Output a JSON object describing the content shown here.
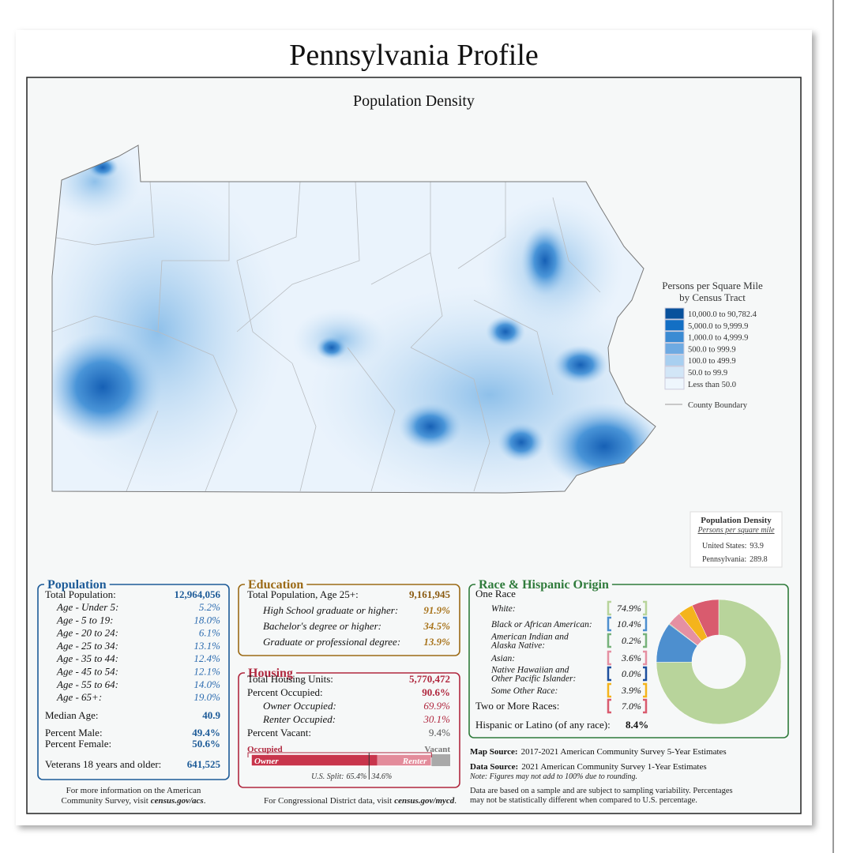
{
  "header": {
    "title": "Pennsylvania Profile"
  },
  "map": {
    "title": "Population Density",
    "legend": {
      "title": [
        "Persons per Square Mile",
        "by Census Tract"
      ],
      "items": [
        {
          "label": "10,000.0 to 90,782.4",
          "color": "#08519c"
        },
        {
          "label": "5,000.0 to 9,999.9",
          "color": "#136fc4"
        },
        {
          "label": "1,000.0 to 4,999.9",
          "color": "#3b8bd3"
        },
        {
          "label": "500.0 to 999.9",
          "color": "#6eaae2"
        },
        {
          "label": "100.0 to 499.9",
          "color": "#a8cff0"
        },
        {
          "label": "50.0 to 99.9",
          "color": "#d2e6f7"
        },
        {
          "label": "Less than 50.0",
          "color": "#eef6fd"
        }
      ],
      "boundary": "County Boundary"
    },
    "density_box": {
      "title": "Population Density",
      "subtitle": "Persons per square mile",
      "rows": [
        {
          "label": "United States:",
          "value": "93.9"
        },
        {
          "label": "Pennsylvania:",
          "value": "289.8"
        }
      ]
    }
  },
  "population": {
    "title": "Population",
    "total": {
      "label": "Total Population:",
      "value": "12,964,056"
    },
    "ages": [
      {
        "label": "Age - Under 5:",
        "value": "5.2%"
      },
      {
        "label": "Age - 5 to 19:",
        "value": "18.0%"
      },
      {
        "label": "Age - 20 to 24:",
        "value": "6.1%"
      },
      {
        "label": "Age - 25 to 34:",
        "value": "13.1%"
      },
      {
        "label": "Age - 35 to 44:",
        "value": "12.4%"
      },
      {
        "label": "Age - 45 to 54:",
        "value": "12.1%"
      },
      {
        "label": "Age - 55 to 64:",
        "value": "14.0%"
      },
      {
        "label": "Age - 65+:",
        "value": "19.0%"
      }
    ],
    "median": {
      "label": "Median Age:",
      "value": "40.9"
    },
    "sex": [
      {
        "label": "Percent Male:",
        "value": "49.4%"
      },
      {
        "label": "Percent Female:",
        "value": "50.6%"
      }
    ],
    "veterans": {
      "label": "Veterans 18 years and older:",
      "value": "641,525"
    },
    "footer": {
      "line1": "For more information on the American",
      "line2": "Community Survey, visit",
      "link": "census.gov/acs",
      "end": "."
    }
  },
  "education": {
    "title": "Education",
    "total": {
      "label": "Total Population, Age 25+:",
      "value": "9,161,945"
    },
    "items": [
      {
        "label": "High School  graduate or higher:",
        "value": "91.9%"
      },
      {
        "label": "Bachelor's degree or higher:",
        "value": "34.5%"
      },
      {
        "label": "Graduate or professional degree:",
        "value": "13.9%"
      }
    ]
  },
  "housing": {
    "title": "Housing",
    "total": {
      "label": "Total Housing Units:",
      "value": "5,770,472"
    },
    "occupied": {
      "label": "Percent Occupied:",
      "value": 90.6,
      "value_label": "90.6%"
    },
    "tenure": [
      {
        "label": "Owner Occupied:",
        "value": 69.9,
        "value_label": "69.9%"
      },
      {
        "label": "Renter Occupied:",
        "value": 30.1,
        "value_label": "30.1%"
      }
    ],
    "vacant": {
      "label": "Percent Vacant:",
      "value": 9.4,
      "value_label": "9.4%"
    },
    "bar": {
      "occupied_label": "Occupied",
      "vacant_label": "Vacant",
      "owner_label": "Owner",
      "renter_label": "Renter",
      "us_split": {
        "label": "U.S. Split:",
        "owner": 65.4,
        "owner_label": "65.4%",
        "renter": 34.6,
        "renter_label": "34.6%"
      }
    },
    "footer": {
      "text": "For Congressional District data, visit",
      "link": "census.gov/mycd",
      "end": "."
    }
  },
  "race": {
    "title": "Race & Hispanic Origin",
    "one_race": "One Race",
    "categories": [
      [
        "White:"
      ],
      [
        "Black or African American:"
      ],
      [
        "American Indian and",
        "Alaska Native:"
      ],
      [
        "Asian:"
      ],
      [
        "Native Hawaiian and",
        "Other Pacific Islander:"
      ],
      [
        "Some Other Race:"
      ],
      [
        "Two or More Races:"
      ]
    ],
    "values": [
      74.9,
      10.4,
      0.2,
      3.6,
      0.0,
      3.9,
      7.0
    ],
    "value_labels": [
      "74.9%",
      "10.4%",
      "0.2%",
      "3.6%",
      "0.0%",
      "3.9%",
      "7.0%"
    ],
    "colors": [
      "#b8d49b",
      "#4d8fcf",
      "#76b27a",
      "#e590a2",
      "#1d4f9e",
      "#f4b41c",
      "#d95b6e"
    ],
    "hispanic": {
      "label": "Hispanic or Latino (of any race):",
      "value": "8.4%"
    }
  },
  "sources": {
    "map_source": {
      "label": "Map Source:",
      "text": "2017-2021 American Community Survey 5-Year Estimates"
    },
    "data_source": {
      "label": "Data Source:",
      "text": "2021 American Community Survey 1-Year Estimates"
    },
    "note": "Note: Figures may not add to 100% due to rounding.",
    "disclaimer": [
      "Data are based on a sample and are subject to sampling variability. Percentages",
      "may not be statistically different when compared to U.S. percentage."
    ]
  }
}
